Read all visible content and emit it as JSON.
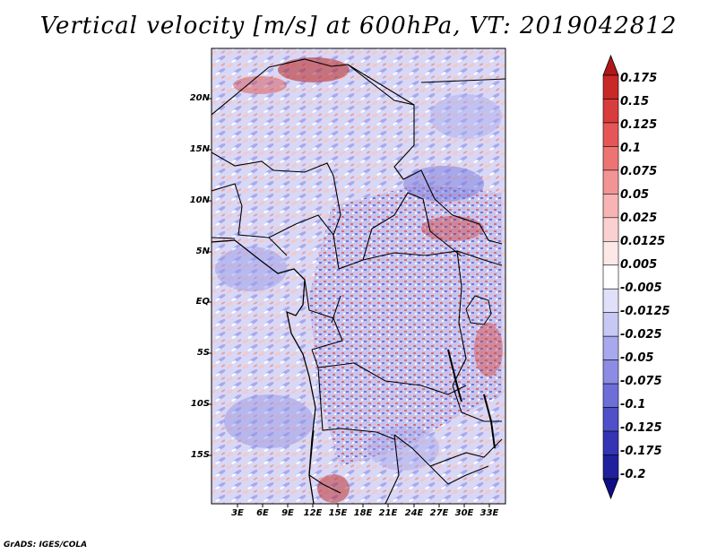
{
  "title": "Vertical velocity [m/s] at 600hPa, VT: 2019042812",
  "footer": "GrADS: IGES/COLA",
  "map": {
    "lat_labels": [
      "20N",
      "15N",
      "10N",
      "5N",
      "EQ",
      "5S",
      "10S",
      "15S"
    ],
    "lon_labels": [
      "3E",
      "6E",
      "9E",
      "12E",
      "15E",
      "18E",
      "21E",
      "24E",
      "27E",
      "30E",
      "33E"
    ],
    "lon_range": [
      0,
      35
    ],
    "lat_range": [
      -20,
      24
    ]
  },
  "colorbar": {
    "levels": [
      "0.175",
      "0.15",
      "0.125",
      "0.1",
      "0.075",
      "0.05",
      "0.025",
      "0.0125",
      "0.005",
      "-0.005",
      "-0.0125",
      "-0.025",
      "-0.05",
      "-0.075",
      "-0.1",
      "-0.125",
      "-0.175",
      "-0.2"
    ],
    "colors": [
      "#b01818",
      "#c82828",
      "#d83c3c",
      "#e65656",
      "#ee7474",
      "#f39494",
      "#f8b4b4",
      "#fbd0d0",
      "#fde8e8",
      "#ffffff",
      "#e0e0fa",
      "#c8c8f4",
      "#a8a8ee",
      "#8c8ce4",
      "#6e6ed8",
      "#5050c8",
      "#3434b4",
      "#20209c",
      "#0e0e86"
    ]
  }
}
